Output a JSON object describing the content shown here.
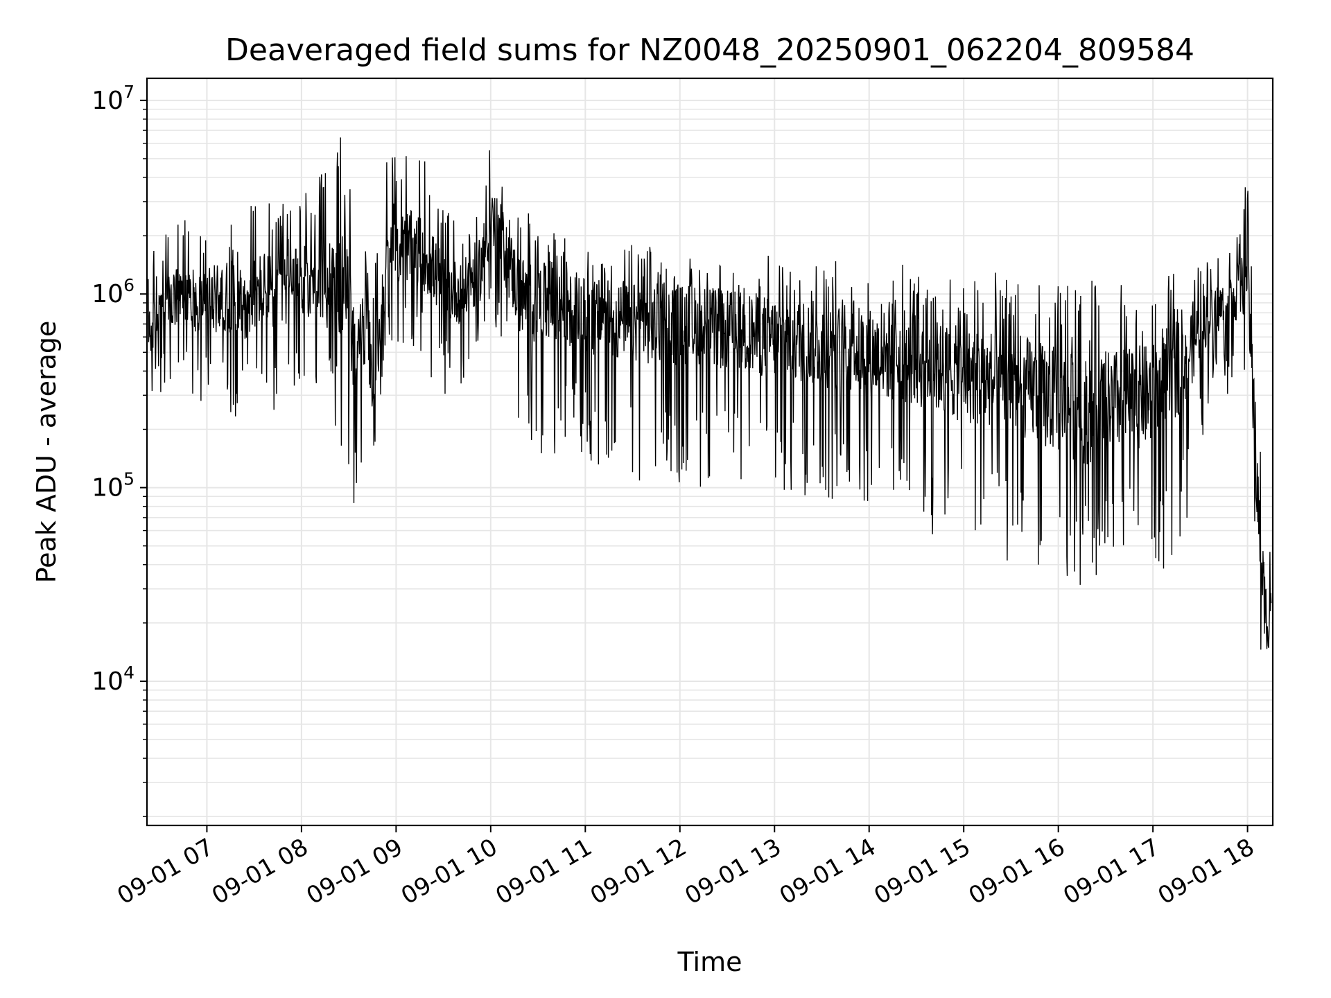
{
  "chart_data": {
    "type": "line",
    "title": "Deaveraged field sums for NZ0048_20250901_062204_809584",
    "xlabel": "Time",
    "ylabel": "Peak ADU - average",
    "yscale": "log",
    "xlim": [
      "09-01 06:22",
      "09-01 18:16"
    ],
    "ylim": [
      1800,
      13000000
    ],
    "grid": true,
    "line_color": "#000000",
    "grid_color": "#e6e6e6",
    "x_ticks": [
      "09-01 07",
      "09-01 08",
      "09-01 09",
      "09-01 10",
      "09-01 11",
      "09-01 12",
      "09-01 13",
      "09-01 14",
      "09-01 15",
      "09-01 16",
      "09-01 17",
      "09-01 18"
    ],
    "y_ticks": [
      {
        "value": 10000,
        "base": "10",
        "exp": "4"
      },
      {
        "value": 100000,
        "base": "10",
        "exp": "5"
      },
      {
        "value": 1000000,
        "base": "10",
        "exp": "6"
      },
      {
        "value": 10000000,
        "base": "10",
        "exp": "7"
      }
    ],
    "series": [
      {
        "hours": [
          6.38,
          6.6,
          6.8,
          7.0,
          7.2,
          7.4,
          7.6,
          7.75,
          7.9,
          8.1,
          8.3,
          8.45,
          8.55,
          8.7,
          8.75,
          8.9,
          9.1,
          9.3,
          9.5,
          9.7,
          9.9,
          10.0,
          10.1,
          10.3,
          10.5,
          10.7,
          10.9,
          11.1,
          11.5,
          12.0,
          12.5,
          13.0,
          13.5,
          14.0,
          14.5,
          15.0,
          15.5,
          16.0,
          16.3,
          16.6,
          17.0,
          17.3,
          17.6,
          17.8,
          18.0,
          18.05,
          18.1,
          18.15,
          18.2,
          18.25
        ],
        "typical": [
          600000,
          900000,
          950000,
          900000,
          1000000,
          900000,
          1100000,
          1000000,
          1100000,
          1200000,
          1100000,
          1200000,
          500000,
          700000,
          300000,
          1500000,
          1800000,
          1600000,
          1100000,
          1000000,
          1400000,
          2500000,
          2000000,
          1000000,
          900000,
          850000,
          800000,
          750000,
          700000,
          700000,
          650000,
          600000,
          550000,
          500000,
          450000,
          380000,
          350000,
          280000,
          250000,
          280000,
          300000,
          450000,
          800000,
          900000,
          1200000,
          400000,
          100000,
          40000,
          20000,
          25000
        ],
        "low": [
          300000,
          300000,
          300000,
          250000,
          200000,
          250000,
          250000,
          200000,
          300000,
          300000,
          250000,
          120000,
          80000,
          150000,
          70000,
          600000,
          500000,
          400000,
          300000,
          300000,
          400000,
          800000,
          500000,
          200000,
          150000,
          150000,
          150000,
          120000,
          110000,
          100000,
          100000,
          90000,
          80000,
          70000,
          60000,
          50000,
          40000,
          35000,
          30000,
          35000,
          35000,
          40000,
          300000,
          300000,
          400000,
          100000,
          30000,
          8000,
          4000,
          9000
        ],
        "high": [
          1500000,
          3000000,
          2500000,
          2500000,
          2500000,
          3000000,
          3000000,
          3000000,
          3500000,
          4000000,
          5000000,
          7000000,
          3000000,
          1500000,
          1200000,
          5000000,
          6000000,
          5000000,
          3000000,
          2500000,
          4000000,
          7000000,
          5000000,
          3000000,
          2800000,
          2200000,
          2000000,
          1800000,
          1800000,
          1700000,
          1600000,
          1600000,
          1500000,
          1500000,
          1400000,
          1300000,
          1300000,
          1300000,
          1200000,
          1200000,
          1200000,
          1300000,
          1600000,
          1700000,
          4000000,
          2500000,
          500000,
          100000,
          60000,
          60000
        ]
      }
    ]
  }
}
